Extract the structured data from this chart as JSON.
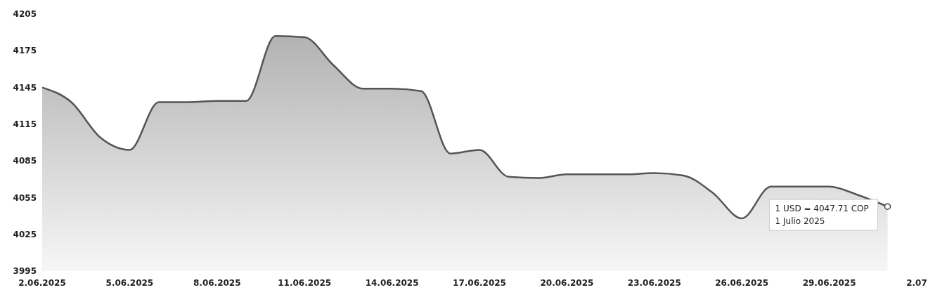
{
  "chart_data": {
    "type": "area",
    "x": [
      "2025-06-02",
      "2025-06-03",
      "2025-06-04",
      "2025-06-05",
      "2025-06-06",
      "2025-06-07",
      "2025-06-08",
      "2025-06-09",
      "2025-06-10",
      "2025-06-11",
      "2025-06-12",
      "2025-06-13",
      "2025-06-14",
      "2025-06-15",
      "2025-06-16",
      "2025-06-17",
      "2025-06-18",
      "2025-06-19",
      "2025-06-20",
      "2025-06-21",
      "2025-06-22",
      "2025-06-23",
      "2025-06-24",
      "2025-06-25",
      "2025-06-26",
      "2025-06-27",
      "2025-06-28",
      "2025-06-29",
      "2025-06-30",
      "2025-07-01"
    ],
    "series": [
      {
        "color": "#555555",
        "values": [
          4145,
          4133,
          4104,
          4094,
          4133,
          4133,
          4134,
          4134,
          4187,
          4186,
          4163,
          4144,
          4144,
          4142,
          4091,
          4094,
          4072,
          4071,
          4074,
          4074,
          4074,
          4075,
          4073,
          4059,
          4038,
          4064,
          4064,
          4064,
          4057,
          4047.71
        ]
      }
    ],
    "xlim": [
      "2025-06-02",
      "2025-07-02"
    ],
    "xticks": [
      {
        "value": "2025-06-02",
        "label": "2.06.2025"
      },
      {
        "value": "2025-06-05",
        "label": "5.06.2025"
      },
      {
        "value": "2025-06-08",
        "label": "8.06.2025"
      },
      {
        "value": "2025-06-11",
        "label": "11.06.2025"
      },
      {
        "value": "2025-06-14",
        "label": "14.06.2025"
      },
      {
        "value": "2025-06-17",
        "label": "17.06.2025"
      },
      {
        "value": "2025-06-20",
        "label": "20.06.2025"
      },
      {
        "value": "2025-06-23",
        "label": "23.06.2025"
      },
      {
        "value": "2025-06-26",
        "label": "26.06.2025"
      },
      {
        "value": "2025-06-29",
        "label": "29.06.2025"
      },
      {
        "value": "2025-07-02",
        "label": "2.07"
      }
    ],
    "ylim": [
      3995,
      4205
    ],
    "yticks": [
      3995,
      4025,
      4055,
      4085,
      4115,
      4145,
      4175,
      4205
    ],
    "annotations": [
      {
        "text": "1 USD = 4047.71 COP\n1 Julio 2025",
        "x": "2025-07-01",
        "y": 4047.71
      }
    ],
    "grid": false
  }
}
